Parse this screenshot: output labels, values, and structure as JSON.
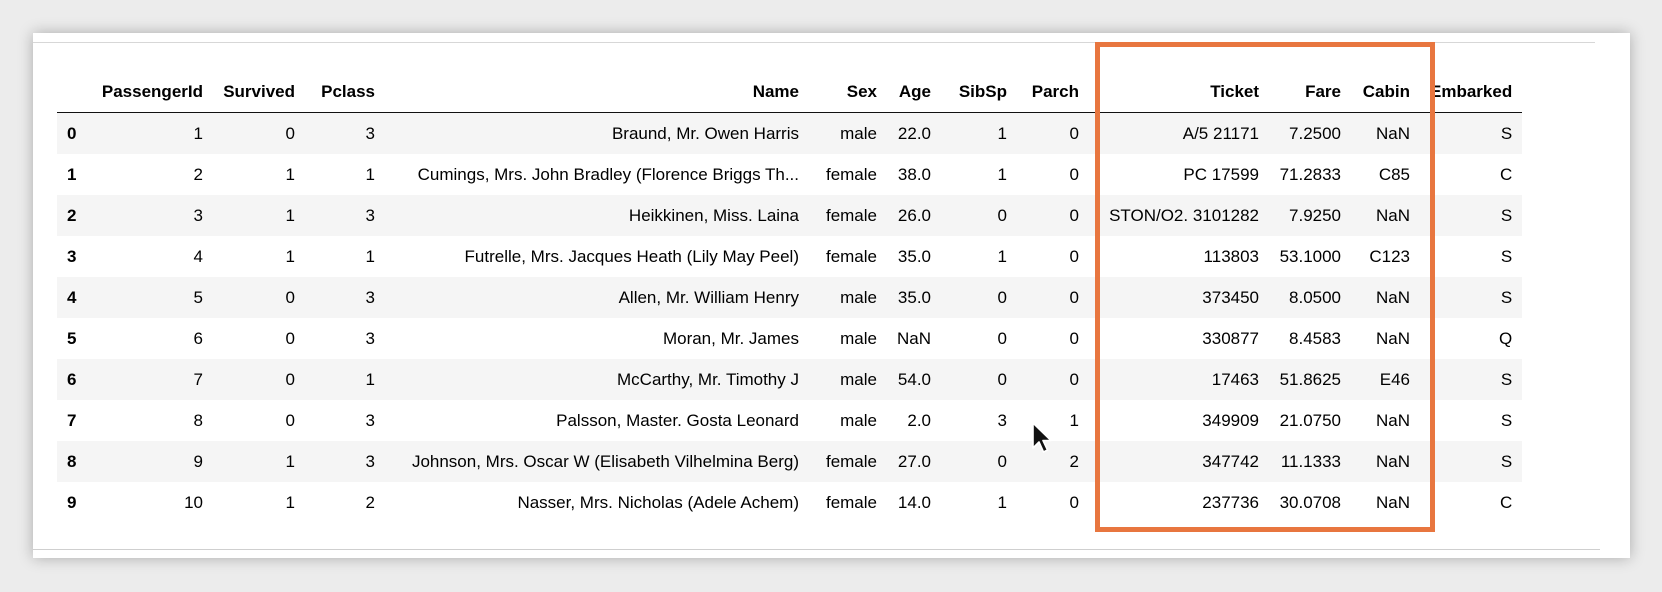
{
  "table": {
    "index_header": "",
    "columns": [
      "PassengerId",
      "Survived",
      "Pclass",
      "Name",
      "Sex",
      "Age",
      "SibSp",
      "Parch",
      "Ticket",
      "Fare",
      "Cabin",
      "Embarked"
    ],
    "rows": [
      {
        "index": "0",
        "cells": [
          "1",
          "0",
          "3",
          "Braund, Mr. Owen Harris",
          "male",
          "22.0",
          "1",
          "0",
          "A/5 21171",
          "7.2500",
          "NaN",
          "S"
        ]
      },
      {
        "index": "1",
        "cells": [
          "2",
          "1",
          "1",
          "Cumings, Mrs. John Bradley (Florence Briggs Th...",
          "female",
          "38.0",
          "1",
          "0",
          "PC 17599",
          "71.2833",
          "C85",
          "C"
        ]
      },
      {
        "index": "2",
        "cells": [
          "3",
          "1",
          "3",
          "Heikkinen, Miss. Laina",
          "female",
          "26.0",
          "0",
          "0",
          "STON/O2. 3101282",
          "7.9250",
          "NaN",
          "S"
        ]
      },
      {
        "index": "3",
        "cells": [
          "4",
          "1",
          "1",
          "Futrelle, Mrs. Jacques Heath (Lily May Peel)",
          "female",
          "35.0",
          "1",
          "0",
          "113803",
          "53.1000",
          "C123",
          "S"
        ]
      },
      {
        "index": "4",
        "cells": [
          "5",
          "0",
          "3",
          "Allen, Mr. William Henry",
          "male",
          "35.0",
          "0",
          "0",
          "373450",
          "8.0500",
          "NaN",
          "S"
        ]
      },
      {
        "index": "5",
        "cells": [
          "6",
          "0",
          "3",
          "Moran, Mr. James",
          "male",
          "NaN",
          "0",
          "0",
          "330877",
          "8.4583",
          "NaN",
          "Q"
        ]
      },
      {
        "index": "6",
        "cells": [
          "7",
          "0",
          "1",
          "McCarthy, Mr. Timothy J",
          "male",
          "54.0",
          "0",
          "0",
          "17463",
          "51.8625",
          "E46",
          "S"
        ]
      },
      {
        "index": "7",
        "cells": [
          "8",
          "0",
          "3",
          "Palsson, Master. Gosta Leonard",
          "male",
          "2.0",
          "3",
          "1",
          "349909",
          "21.0750",
          "NaN",
          "S"
        ]
      },
      {
        "index": "8",
        "cells": [
          "9",
          "1",
          "3",
          "Johnson, Mrs. Oscar W (Elisabeth Vilhelmina Berg)",
          "female",
          "27.0",
          "0",
          "2",
          "347742",
          "11.1333",
          "NaN",
          "S"
        ]
      },
      {
        "index": "9",
        "cells": [
          "10",
          "1",
          "2",
          "Nasser, Mrs. Nicholas (Adele Achem)",
          "female",
          "14.0",
          "1",
          "0",
          "237736",
          "30.0708",
          "NaN",
          "C"
        ]
      }
    ]
  },
  "highlight": {
    "color": "#e8763f",
    "columns": [
      "Ticket",
      "Fare",
      "Cabin"
    ]
  },
  "cursor": {
    "icon": "mouse-pointer-icon"
  }
}
